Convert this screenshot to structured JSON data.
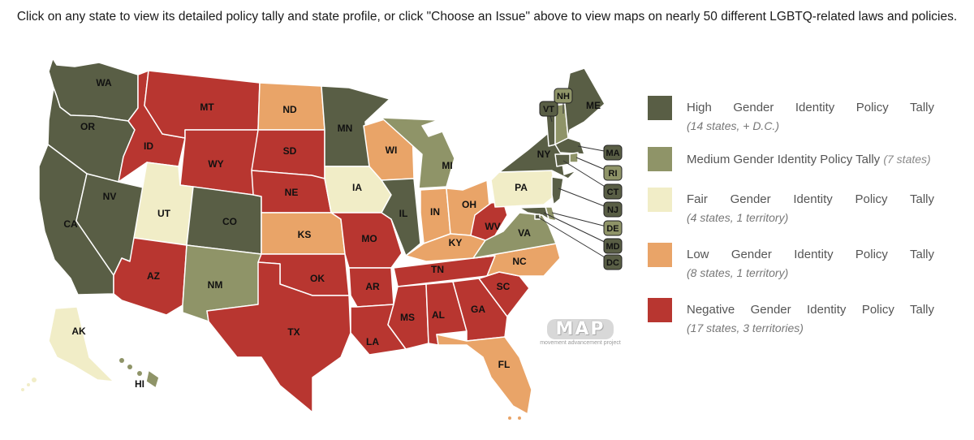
{
  "instructions": "Click on any state to view its detailed policy tally and state profile, or click \"Choose an Issue\" above to view maps on nearly 50 different LGBTQ-related laws and policies.",
  "colors": {
    "high": "#595e45",
    "medium": "#8f9468",
    "fair": "#f1edc7",
    "low": "#e9a468",
    "negative": "#b83630"
  },
  "legend": [
    {
      "key": "high",
      "label": "High Gender Identity Policy Tally",
      "count": "(14 states, + D.C.)"
    },
    {
      "key": "medium",
      "label": "Medium Gender Identity Policy Tally",
      "count": "(7 states)"
    },
    {
      "key": "fair",
      "label": "Fair Gender Identity Policy Tally",
      "count": "(4 states, 1 territory)"
    },
    {
      "key": "low",
      "label": "Low Gender Identity Policy Tally",
      "count": "(8 states, 1 territory)"
    },
    {
      "key": "negative",
      "label": "Negative Gender Identity Policy Tally",
      "count": "(17 states, 3 territories)"
    }
  ],
  "logo": {
    "mark": "MAP",
    "subtitle": "movement advancement project"
  },
  "states": [
    {
      "abbr": "WA",
      "tally": "high"
    },
    {
      "abbr": "OR",
      "tally": "high"
    },
    {
      "abbr": "CA",
      "tally": "high"
    },
    {
      "abbr": "NV",
      "tally": "high"
    },
    {
      "abbr": "ID",
      "tally": "negative"
    },
    {
      "abbr": "MT",
      "tally": "negative"
    },
    {
      "abbr": "WY",
      "tally": "negative"
    },
    {
      "abbr": "UT",
      "tally": "fair"
    },
    {
      "abbr": "AZ",
      "tally": "negative"
    },
    {
      "abbr": "CO",
      "tally": "high"
    },
    {
      "abbr": "NM",
      "tally": "medium"
    },
    {
      "abbr": "ND",
      "tally": "low"
    },
    {
      "abbr": "SD",
      "tally": "negative"
    },
    {
      "abbr": "NE",
      "tally": "negative"
    },
    {
      "abbr": "KS",
      "tally": "low"
    },
    {
      "abbr": "OK",
      "tally": "negative"
    },
    {
      "abbr": "TX",
      "tally": "negative"
    },
    {
      "abbr": "MN",
      "tally": "high"
    },
    {
      "abbr": "IA",
      "tally": "fair"
    },
    {
      "abbr": "MO",
      "tally": "negative"
    },
    {
      "abbr": "AR",
      "tally": "negative"
    },
    {
      "abbr": "LA",
      "tally": "negative"
    },
    {
      "abbr": "WI",
      "tally": "low"
    },
    {
      "abbr": "IL",
      "tally": "high"
    },
    {
      "abbr": "MI",
      "tally": "medium"
    },
    {
      "abbr": "IN",
      "tally": "low"
    },
    {
      "abbr": "OH",
      "tally": "low"
    },
    {
      "abbr": "KY",
      "tally": "low"
    },
    {
      "abbr": "TN",
      "tally": "negative"
    },
    {
      "abbr": "MS",
      "tally": "negative"
    },
    {
      "abbr": "AL",
      "tally": "negative"
    },
    {
      "abbr": "GA",
      "tally": "negative"
    },
    {
      "abbr": "FL",
      "tally": "low"
    },
    {
      "abbr": "SC",
      "tally": "negative"
    },
    {
      "abbr": "NC",
      "tally": "low"
    },
    {
      "abbr": "VA",
      "tally": "medium"
    },
    {
      "abbr": "WV",
      "tally": "negative"
    },
    {
      "abbr": "PA",
      "tally": "fair"
    },
    {
      "abbr": "NY",
      "tally": "high"
    },
    {
      "abbr": "VT",
      "tally": "high"
    },
    {
      "abbr": "NH",
      "tally": "medium"
    },
    {
      "abbr": "ME",
      "tally": "high"
    },
    {
      "abbr": "MA",
      "tally": "high"
    },
    {
      "abbr": "RI",
      "tally": "medium"
    },
    {
      "abbr": "CT",
      "tally": "high"
    },
    {
      "abbr": "NJ",
      "tally": "high"
    },
    {
      "abbr": "DE",
      "tally": "medium"
    },
    {
      "abbr": "MD",
      "tally": "high"
    },
    {
      "abbr": "DC",
      "tally": "high"
    },
    {
      "abbr": "AK",
      "tally": "fair"
    },
    {
      "abbr": "HI",
      "tally": "medium"
    }
  ]
}
